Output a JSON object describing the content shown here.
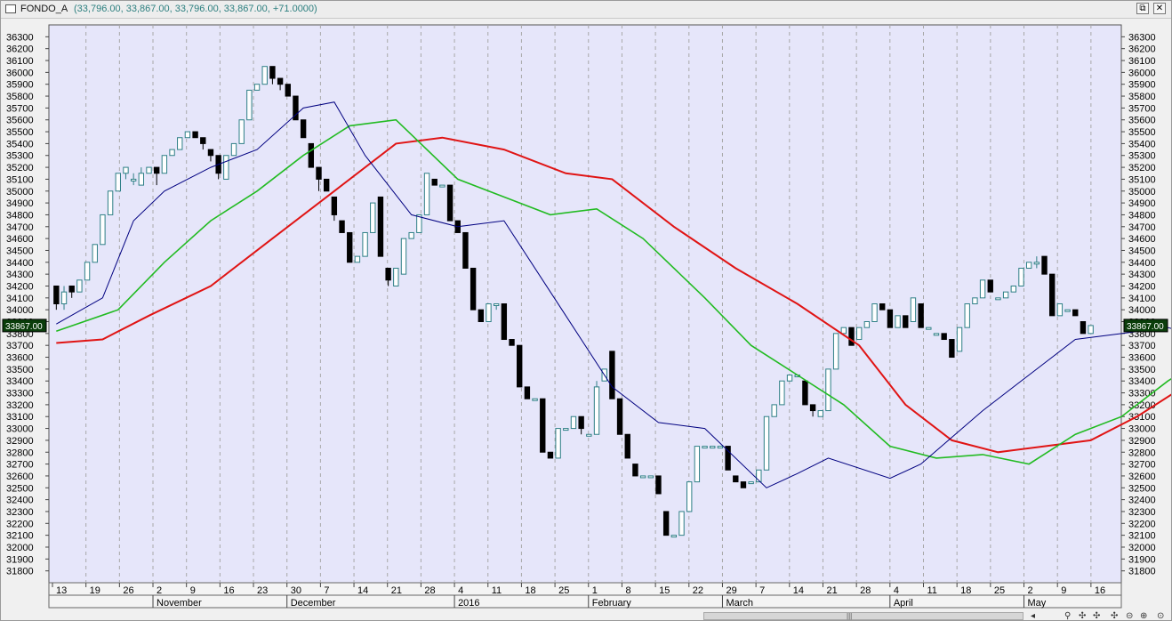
{
  "window": {
    "symbol": "FONDO_A",
    "ohlc_text": "(33,796.00, 33,867.00, 33,796.00, 33,867.00, +71.0000)",
    "restore_label": "⧉",
    "close_label": "✕"
  },
  "last_price_label": "33867.00",
  "colors": {
    "plot_bg": "#e6e6fa",
    "up_fill": "#ffffff",
    "up_border": "#2e7f86",
    "down_fill": "#000000",
    "ma_short": "#000080",
    "ma_mid": "#22bb22",
    "ma_long": "#e01414",
    "price_tag": "#0a3d0a",
    "price_tag_text": "#ffffff"
  },
  "bottom_icons": [
    "search-icon",
    "up-arrow-icon",
    "right-arrow-icon",
    "left-arrow-icon",
    "zoom-icon"
  ],
  "chart_data": {
    "type": "candlestick",
    "title": "",
    "ylim": [
      31700,
      36400
    ],
    "y_ticks": [
      31800,
      31900,
      32000,
      32100,
      32200,
      32300,
      32400,
      32500,
      32600,
      32700,
      32800,
      32900,
      33000,
      33100,
      33200,
      33300,
      33400,
      33500,
      33600,
      33700,
      33800,
      33900,
      34000,
      34100,
      34200,
      34300,
      34400,
      34500,
      34600,
      34700,
      34800,
      34900,
      35000,
      35100,
      35200,
      35300,
      35400,
      35500,
      35600,
      35700,
      35800,
      35900,
      36000,
      36100,
      36200,
      36300
    ],
    "x_day_labels": [
      "13",
      "19",
      "26",
      "2",
      "9",
      "16",
      "23",
      "30",
      "7",
      "14",
      "21",
      "28",
      "4",
      "11",
      "18",
      "25",
      "1",
      "8",
      "15",
      "22",
      "29",
      "7",
      "14",
      "21",
      "28",
      "4",
      "11",
      "18",
      "25",
      "2",
      "9",
      "16"
    ],
    "month_labels": [
      {
        "label": "November",
        "at": "2"
      },
      {
        "label": "December",
        "at": "30"
      },
      {
        "label": "2016",
        "at": "4"
      },
      {
        "label": "February",
        "at": "1"
      },
      {
        "label": "March",
        "at": "29"
      },
      {
        "label": "April",
        "at": "4"
      },
      {
        "label": "May",
        "at": "2"
      }
    ],
    "candles": [
      [
        34200,
        34200,
        34000,
        34050
      ],
      [
        34050,
        34200,
        34000,
        34150
      ],
      [
        34200,
        34200,
        34100,
        34150
      ],
      [
        34150,
        34250,
        34150,
        34250
      ],
      [
        34250,
        34400,
        34250,
        34400
      ],
      [
        34400,
        34550,
        34400,
        34550
      ],
      [
        34550,
        34800,
        34550,
        34800
      ],
      [
        34800,
        35000,
        34800,
        35000
      ],
      [
        35000,
        35150,
        35000,
        35150
      ],
      [
        35150,
        35200,
        35100,
        35200
      ],
      [
        35100,
        35150,
        35050,
        35100
      ],
      [
        35050,
        35200,
        35050,
        35150
      ],
      [
        35150,
        35200,
        35150,
        35200
      ],
      [
        35200,
        35200,
        35050,
        35150
      ],
      [
        35150,
        35300,
        35150,
        35300
      ],
      [
        35300,
        35350,
        35300,
        35350
      ],
      [
        35350,
        35450,
        35350,
        35450
      ],
      [
        35450,
        35500,
        35450,
        35500
      ],
      [
        35500,
        35500,
        35450,
        35450
      ],
      [
        35450,
        35450,
        35350,
        35400
      ],
      [
        35350,
        35350,
        35250,
        35300
      ],
      [
        35300,
        35300,
        35100,
        35150
      ],
      [
        35100,
        35300,
        35100,
        35300
      ],
      [
        35300,
        35400,
        35300,
        35400
      ],
      [
        35400,
        35600,
        35400,
        35600
      ],
      [
        35600,
        35850,
        35600,
        35850
      ],
      [
        35850,
        35900,
        35850,
        35900
      ],
      [
        35900,
        36050,
        35900,
        36050
      ],
      [
        36050,
        36050,
        35900,
        35950
      ],
      [
        35950,
        35950,
        35850,
        35900
      ],
      [
        35900,
        35900,
        35800,
        35800
      ],
      [
        35800,
        35800,
        35600,
        35600
      ],
      [
        35600,
        35600,
        35450,
        35450
      ],
      [
        35400,
        35400,
        35200,
        35200
      ],
      [
        35200,
        35200,
        35000,
        35100
      ],
      [
        35100,
        35100,
        35000,
        35000
      ],
      [
        34950,
        34950,
        34750,
        34800
      ],
      [
        34750,
        34750,
        34650,
        34650
      ],
      [
        34650,
        34650,
        34400,
        34400
      ],
      [
        34400,
        34450,
        34400,
        34450
      ],
      [
        34450,
        34650,
        34450,
        34650
      ],
      [
        34650,
        34900,
        34650,
        34900
      ],
      [
        34950,
        34950,
        34450,
        34450
      ],
      [
        34350,
        34350,
        34200,
        34250
      ],
      [
        34200,
        34350,
        34200,
        34350
      ],
      [
        34300,
        34600,
        34300,
        34600
      ],
      [
        34600,
        34650,
        34600,
        34650
      ],
      [
        34650,
        34800,
        34650,
        34800
      ],
      [
        34800,
        35150,
        34800,
        35150
      ],
      [
        35100,
        35100,
        35050,
        35050
      ],
      [
        35050,
        35050,
        35050,
        35050
      ],
      [
        35050,
        35050,
        34750,
        34750
      ],
      [
        34750,
        34750,
        34650,
        34650
      ],
      [
        34650,
        34650,
        34350,
        34350
      ],
      [
        34350,
        34350,
        34000,
        34000
      ],
      [
        34000,
        34000,
        33900,
        33900
      ],
      [
        33900,
        34050,
        33900,
        34050
      ],
      [
        34050,
        34050,
        34000,
        34050
      ],
      [
        34050,
        34050,
        33750,
        33750
      ],
      [
        33750,
        33750,
        33700,
        33700
      ],
      [
        33700,
        33700,
        33350,
        33350
      ],
      [
        33350,
        33350,
        33250,
        33250
      ],
      [
        33250,
        33250,
        33250,
        33250
      ],
      [
        33250,
        33250,
        32800,
        32800
      ],
      [
        32800,
        32800,
        32750,
        32750
      ],
      [
        32750,
        33000,
        32750,
        33000
      ],
      [
        33000,
        33000,
        33000,
        33000
      ],
      [
        33000,
        33100,
        33000,
        33100
      ],
      [
        33100,
        33100,
        32950,
        33000
      ],
      [
        32950,
        32950,
        32950,
        32950
      ],
      [
        32950,
        33400,
        32950,
        33350
      ],
      [
        33400,
        33500,
        33400,
        33500
      ],
      [
        33650,
        33650,
        33250,
        33250
      ],
      [
        33250,
        33250,
        32950,
        32950
      ],
      [
        32950,
        32950,
        32750,
        32750
      ],
      [
        32700,
        32700,
        32600,
        32600
      ],
      [
        32600,
        32600,
        32600,
        32600
      ],
      [
        32600,
        32600,
        32600,
        32600
      ],
      [
        32600,
        32600,
        32450,
        32450
      ],
      [
        32300,
        32300,
        32100,
        32100
      ],
      [
        32100,
        32100,
        32100,
        32100
      ],
      [
        32100,
        32300,
        32100,
        32300
      ],
      [
        32300,
        32550,
        32300,
        32550
      ],
      [
        32550,
        32850,
        32550,
        32850
      ],
      [
        32850,
        32850,
        32850,
        32850
      ],
      [
        32850,
        32850,
        32850,
        32850
      ],
      [
        32850,
        32850,
        32850,
        32850
      ],
      [
        32850,
        32850,
        32650,
        32650
      ],
      [
        32600,
        32600,
        32550,
        32550
      ],
      [
        32550,
        32550,
        32500,
        32500
      ],
      [
        32550,
        32550,
        32550,
        32550
      ],
      [
        32550,
        32650,
        32550,
        32650
      ],
      [
        32650,
        33100,
        32650,
        33100
      ],
      [
        33100,
        33200,
        33100,
        33200
      ],
      [
        33200,
        33400,
        33200,
        33400
      ],
      [
        33400,
        33450,
        33400,
        33450
      ],
      [
        33450,
        33450,
        33450,
        33450
      ],
      [
        33400,
        33400,
        33200,
        33200
      ],
      [
        33200,
        33200,
        33100,
        33150
      ],
      [
        33100,
        33150,
        33100,
        33150
      ],
      [
        33150,
        33500,
        33150,
        33500
      ],
      [
        33500,
        33800,
        33500,
        33800
      ],
      [
        33800,
        33850,
        33800,
        33850
      ],
      [
        33850,
        33850,
        33700,
        33700
      ],
      [
        33750,
        33850,
        33750,
        33850
      ],
      [
        33850,
        33900,
        33850,
        33900
      ],
      [
        33900,
        34050,
        33900,
        34050
      ],
      [
        34050,
        34050,
        34000,
        34000
      ],
      [
        34000,
        34000,
        33850,
        33850
      ],
      [
        33850,
        33950,
        33850,
        33950
      ],
      [
        33950,
        33950,
        33850,
        33850
      ],
      [
        33900,
        34100,
        33900,
        34100
      ],
      [
        34050,
        34050,
        33850,
        33850
      ],
      [
        33850,
        33850,
        33850,
        33850
      ],
      [
        33800,
        33800,
        33800,
        33800
      ],
      [
        33800,
        33800,
        33750,
        33750
      ],
      [
        33750,
        33750,
        33600,
        33600
      ],
      [
        33650,
        33850,
        33650,
        33850
      ],
      [
        33850,
        34050,
        33850,
        34050
      ],
      [
        34050,
        34100,
        34050,
        34100
      ],
      [
        34100,
        34250,
        34100,
        34250
      ],
      [
        34250,
        34250,
        34150,
        34150
      ],
      [
        34100,
        34100,
        34100,
        34100
      ],
      [
        34100,
        34150,
        34100,
        34150
      ],
      [
        34150,
        34200,
        34150,
        34200
      ],
      [
        34200,
        34350,
        34200,
        34350
      ],
      [
        34350,
        34400,
        34350,
        34400
      ],
      [
        34400,
        34450,
        34350,
        34400
      ],
      [
        34450,
        34450,
        34300,
        34300
      ],
      [
        34300,
        34300,
        33950,
        33950
      ],
      [
        33950,
        34050,
        33950,
        34050
      ],
      [
        34000,
        34000,
        34000,
        34000
      ],
      [
        34000,
        34000,
        33950,
        33950
      ],
      [
        33900,
        33900,
        33800,
        33800
      ],
      [
        33800,
        33867,
        33796,
        33867
      ]
    ],
    "ma_short": [
      [
        0,
        33880
      ],
      [
        6,
        34100
      ],
      [
        10,
        34750
      ],
      [
        14,
        35000
      ],
      [
        20,
        35200
      ],
      [
        26,
        35350
      ],
      [
        32,
        35700
      ],
      [
        36,
        35750
      ],
      [
        40,
        35300
      ],
      [
        46,
        34800
      ],
      [
        52,
        34700
      ],
      [
        58,
        34750
      ],
      [
        66,
        33950
      ],
      [
        72,
        33350
      ],
      [
        78,
        33050
      ],
      [
        84,
        33000
      ],
      [
        92,
        32500
      ],
      [
        96,
        32620
      ],
      [
        100,
        32750
      ],
      [
        108,
        32580
      ],
      [
        112,
        32700
      ],
      [
        120,
        33150
      ],
      [
        126,
        33450
      ],
      [
        132,
        33750
      ],
      [
        138,
        33800
      ],
      [
        144,
        33850
      ],
      [
        150,
        33750
      ],
      [
        156,
        33950
      ],
      [
        162,
        34050
      ],
      [
        168,
        34150
      ],
      [
        172,
        34250
      ],
      [
        178,
        34000
      ]
    ],
    "ma_mid": [
      [
        0,
        33820
      ],
      [
        8,
        34000
      ],
      [
        14,
        34400
      ],
      [
        20,
        34750
      ],
      [
        26,
        35000
      ],
      [
        32,
        35300
      ],
      [
        38,
        35550
      ],
      [
        44,
        35600
      ],
      [
        52,
        35100
      ],
      [
        58,
        34950
      ],
      [
        64,
        34800
      ],
      [
        70,
        34850
      ],
      [
        76,
        34600
      ],
      [
        84,
        34100
      ],
      [
        90,
        33700
      ],
      [
        96,
        33450
      ],
      [
        102,
        33200
      ],
      [
        108,
        32850
      ],
      [
        114,
        32750
      ],
      [
        120,
        32780
      ],
      [
        126,
        32700
      ],
      [
        132,
        32950
      ],
      [
        138,
        33100
      ],
      [
        144,
        33400
      ],
      [
        150,
        33650
      ],
      [
        156,
        33700
      ],
      [
        162,
        33800
      ],
      [
        168,
        33950
      ],
      [
        172,
        34100
      ],
      [
        176,
        34100
      ],
      [
        180,
        34000
      ]
    ],
    "ma_long": [
      [
        0,
        33720
      ],
      [
        6,
        33750
      ],
      [
        12,
        33950
      ],
      [
        20,
        34200
      ],
      [
        28,
        34600
      ],
      [
        36,
        35000
      ],
      [
        44,
        35400
      ],
      [
        50,
        35450
      ],
      [
        58,
        35350
      ],
      [
        66,
        35150
      ],
      [
        72,
        35100
      ],
      [
        80,
        34700
      ],
      [
        88,
        34350
      ],
      [
        96,
        34050
      ],
      [
        104,
        33700
      ],
      [
        110,
        33200
      ],
      [
        116,
        32900
      ],
      [
        122,
        32800
      ],
      [
        128,
        32850
      ],
      [
        134,
        32900
      ],
      [
        140,
        33100
      ],
      [
        146,
        33350
      ],
      [
        152,
        33500
      ],
      [
        158,
        33650
      ],
      [
        164,
        33800
      ],
      [
        170,
        33950
      ],
      [
        176,
        34000
      ],
      [
        180,
        34000
      ]
    ]
  }
}
